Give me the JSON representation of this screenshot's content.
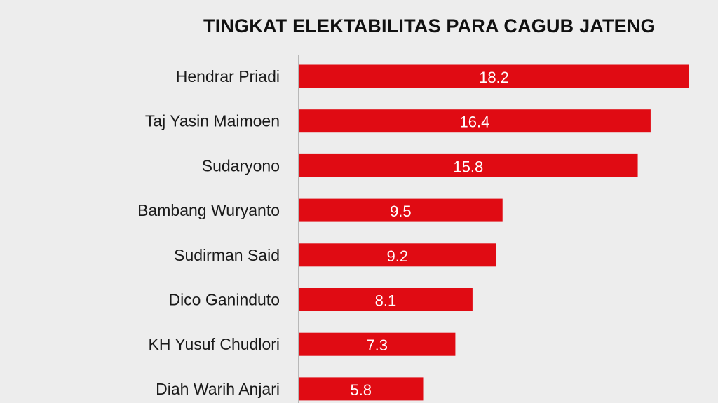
{
  "chart_data": {
    "type": "bar",
    "orientation": "horizontal",
    "title": "TINGKAT ELEKTABILITAS PARA CAGUB JATENG",
    "categories": [
      "Hendrar Priadi",
      "Taj Yasin Maimoen",
      "Sudaryono",
      "Bambang Wuryanto",
      "Sudirman Said",
      "Dico Ganinduto",
      "KH Yusuf Chudlori",
      "Diah Warih Anjari"
    ],
    "values": [
      18.2,
      16.4,
      15.8,
      9.5,
      9.2,
      8.1,
      7.3,
      5.8
    ],
    "value_labels": [
      "18.2",
      "16.4",
      "15.8",
      "9.5",
      "9.2",
      "8.1",
      "7.3",
      "5.8"
    ],
    "xlim": [
      0,
      18.2
    ],
    "grid": false,
    "bar_color": "#e00b13",
    "axis_color": "#a6a6a6"
  }
}
